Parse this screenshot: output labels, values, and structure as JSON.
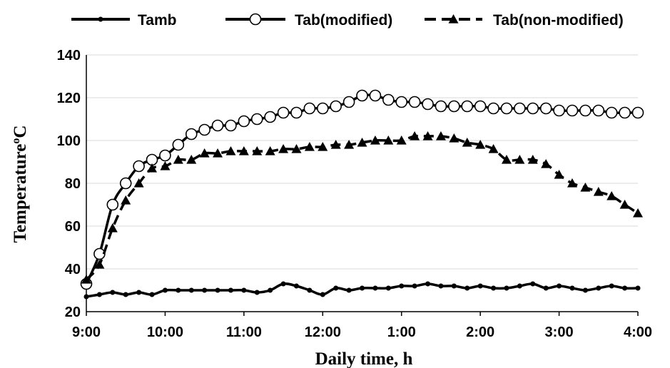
{
  "chart_data": {
    "type": "line",
    "xlabel": "Daily time, h",
    "ylabel": "Temperature",
    "ylabel_sup": "o",
    "ylabel_unit": "C",
    "ylim": [
      20,
      140
    ],
    "yticks": [
      20,
      40,
      60,
      80,
      100,
      120,
      140
    ],
    "xlim": [
      540,
      960
    ],
    "xticks": [
      {
        "label": "9:00",
        "x": 540
      },
      {
        "label": "10:00",
        "x": 600
      },
      {
        "label": "11:00",
        "x": 660
      },
      {
        "label": "12:00",
        "x": 720
      },
      {
        "label": "1:00",
        "x": 780
      },
      {
        "label": "2:00",
        "x": 840
      },
      {
        "label": "3:00",
        "x": 900
      },
      {
        "label": "4:00",
        "x": 960
      }
    ],
    "grid": "horizontal",
    "legend_position": "top",
    "x_minutes": [
      540,
      550,
      560,
      570,
      580,
      590,
      600,
      610,
      620,
      630,
      640,
      650,
      660,
      670,
      680,
      690,
      700,
      710,
      720,
      730,
      740,
      750,
      760,
      770,
      780,
      790,
      800,
      810,
      820,
      830,
      840,
      850,
      860,
      870,
      880,
      890,
      900,
      910,
      920,
      930,
      940,
      950,
      960
    ],
    "series": [
      {
        "name": "Tamb",
        "marker": "dot",
        "values": [
          27,
          28,
          29,
          28,
          29,
          28,
          30,
          30,
          30,
          30,
          30,
          30,
          30,
          29,
          30,
          33,
          32,
          30,
          28,
          31,
          30,
          31,
          31,
          31,
          32,
          32,
          33,
          32,
          32,
          31,
          32,
          31,
          31,
          32,
          33,
          31,
          32,
          31,
          30,
          31,
          32,
          31,
          31
        ]
      },
      {
        "name": "Tab(modified)",
        "marker": "open-circle",
        "values": [
          33,
          47,
          70,
          80,
          88,
          91,
          93,
          98,
          103,
          105,
          107,
          107,
          109,
          110,
          111,
          113,
          113,
          115,
          115,
          116,
          118,
          121,
          121,
          119,
          118,
          118,
          117,
          116,
          116,
          116,
          116,
          115,
          115,
          115,
          115,
          115,
          114,
          114,
          114,
          114,
          113,
          113,
          113
        ]
      },
      {
        "name": "Tab(non-modified)",
        "marker": "triangle",
        "values": [
          35,
          42,
          59,
          72,
          80,
          87,
          88,
          91,
          91,
          94,
          94,
          95,
          95,
          95,
          95,
          96,
          96,
          97,
          97,
          98,
          98,
          99,
          100,
          100,
          100,
          102,
          102,
          102,
          101,
          99,
          98,
          96,
          91,
          91,
          91,
          89,
          84,
          80,
          78,
          76,
          74,
          70,
          66
        ]
      }
    ]
  }
}
